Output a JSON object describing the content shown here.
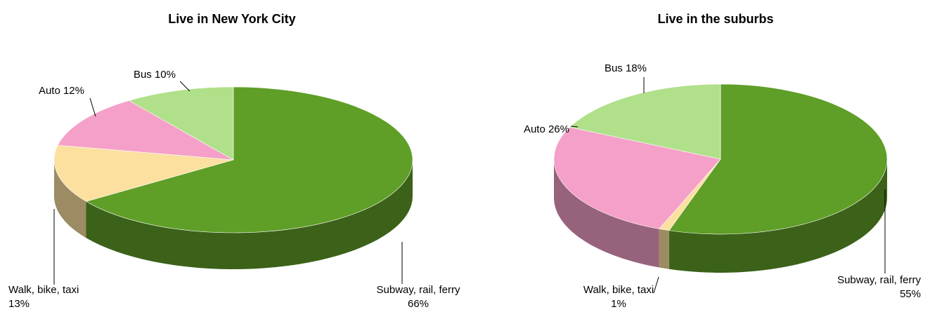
{
  "chart_data": [
    {
      "type": "pie",
      "title": "Live in New York City",
      "categories": [
        "Subway, rail, ferry",
        "Walk, bike, taxi",
        "Auto",
        "Bus"
      ],
      "values": [
        66,
        13,
        12,
        10
      ],
      "value_labels": [
        "66%",
        "13%",
        "12%",
        "10%"
      ],
      "colors": [
        "#5f9e27",
        "#fbe0a0",
        "#f4a0c8",
        "#b0e08a"
      ]
    },
    {
      "type": "pie",
      "title": "Live in the suburbs",
      "categories": [
        "Subway, rail, ferry",
        "Walk, bike, taxi",
        "Auto",
        "Bus"
      ],
      "values": [
        55,
        1,
        26,
        18
      ],
      "value_labels": [
        "55%",
        "1%",
        "26%",
        "18%"
      ],
      "colors": [
        "#5f9e27",
        "#fbe0a0",
        "#f4a0c8",
        "#b0e08a"
      ]
    }
  ]
}
